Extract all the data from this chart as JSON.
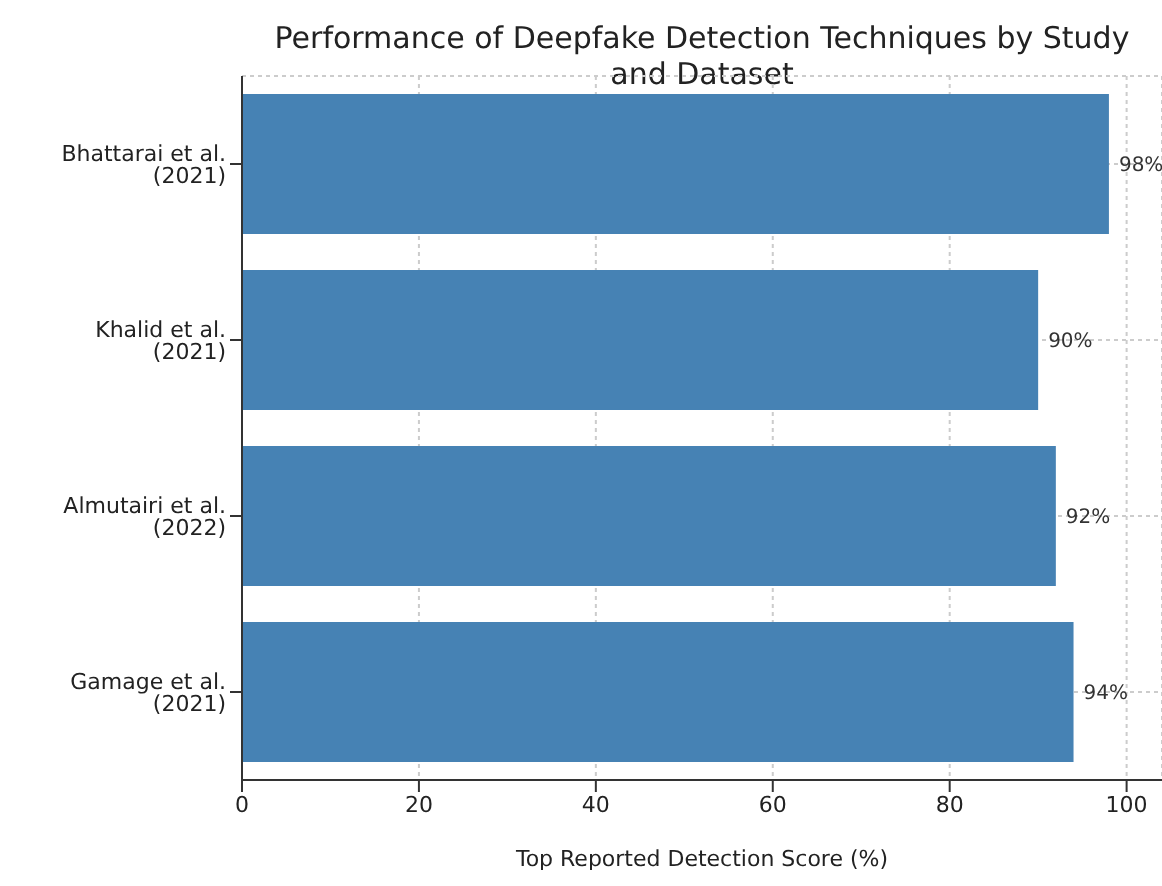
{
  "chart_data": {
    "type": "bar",
    "orientation": "horizontal",
    "title": "Performance of Deepfake Detection Techniques by Study and Dataset",
    "xlabel": "Top Reported Detection Score (%)",
    "categories": [
      "Bhattarai et al. (2021)",
      "Khalid et al. (2021)",
      "Almutairi et al. (2022)",
      "Gamage et al. (2021)"
    ],
    "values": [
      98,
      90,
      92,
      94
    ],
    "value_labels": [
      "98%",
      "90%",
      "92%",
      "94%"
    ],
    "color": "#4682b4",
    "xlim": [
      0,
      104
    ],
    "xticks": [
      0,
      20,
      40,
      60,
      80,
      100
    ],
    "grid": true,
    "legend": false
  }
}
